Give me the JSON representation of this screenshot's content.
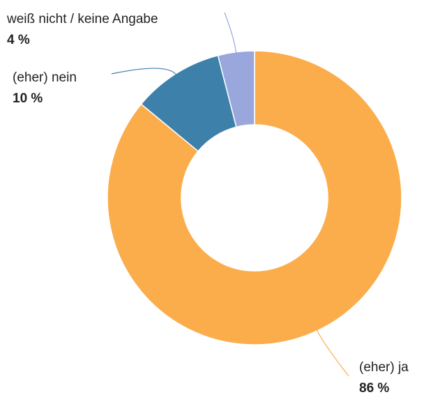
{
  "chart_data": {
    "type": "donut",
    "categories": [
      "(eher) ja",
      "(eher) nein",
      "weiß nicht / keine Angabe"
    ],
    "values": [
      86,
      10,
      4
    ],
    "value_labels": [
      "86 %",
      "10 %",
      "4 %"
    ],
    "colors": [
      "#fbad4c",
      "#3d80a9",
      "#99a7dc"
    ]
  }
}
